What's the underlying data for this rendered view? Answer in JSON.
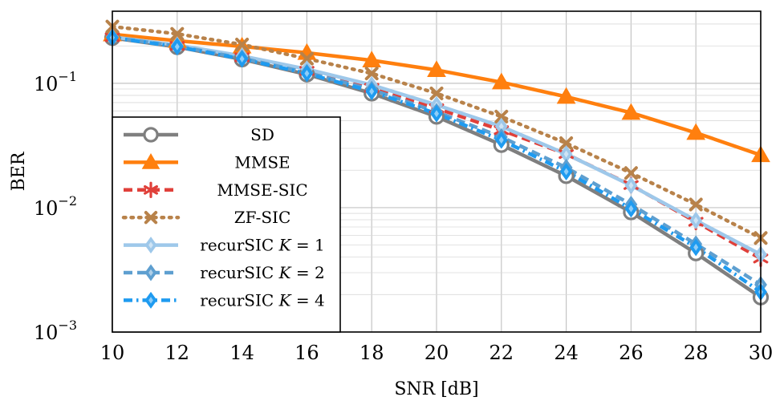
{
  "chart_data": {
    "type": "line",
    "xlabel": "SNR [dB]",
    "ylabel": "BER",
    "x": [
      10,
      12,
      14,
      16,
      18,
      20,
      22,
      24,
      26,
      28,
      30
    ],
    "x_tick_labels": [
      "10",
      "12",
      "14",
      "16",
      "18",
      "20",
      "22",
      "24",
      "26",
      "28",
      "30"
    ],
    "xlim": [
      10,
      30
    ],
    "ylim": [
      0.001,
      0.38
    ],
    "y_scale": "log",
    "y_ticks": [
      {
        "value": 0.1,
        "base": "10",
        "exp": "−1"
      },
      {
        "value": 0.01,
        "base": "10",
        "exp": "−2"
      },
      {
        "value": 0.001,
        "base": "10",
        "exp": "−3"
      }
    ],
    "grid": true,
    "legend_position": "lower-left",
    "series": [
      {
        "name": "SD",
        "label_parts": [
          {
            "t": "SD",
            "i": false
          }
        ],
        "color": "#7f7f7f",
        "dash": "solid",
        "marker": "circle",
        "values": [
          0.232,
          0.196,
          0.156,
          0.118,
          0.083,
          0.054,
          0.032,
          0.018,
          0.0092,
          0.0043,
          0.0019
        ]
      },
      {
        "name": "MMSE",
        "label_parts": [
          {
            "t": "MMSE",
            "i": false
          }
        ],
        "color": "#ff7f0e",
        "dash": "solid",
        "marker": "triangle",
        "values": [
          0.248,
          0.22,
          0.198,
          0.176,
          0.153,
          0.128,
          0.102,
          0.078,
          0.058,
          0.04,
          0.0265
        ]
      },
      {
        "name": "MMSE-SIC",
        "label_parts": [
          {
            "t": "MMSE-SIC",
            "i": false
          }
        ],
        "color": "#e0403a",
        "dash": "dashed",
        "marker": "star",
        "values": [
          0.235,
          0.2,
          0.162,
          0.126,
          0.092,
          0.063,
          0.042,
          0.027,
          0.0152,
          0.0077,
          0.0039
        ]
      },
      {
        "name": "ZF-SIC",
        "label_parts": [
          {
            "t": "ZF-SIC",
            "i": false
          }
        ],
        "color": "#b8824a",
        "dash": "dotted",
        "marker": "cross",
        "values": [
          0.286,
          0.25,
          0.205,
          0.158,
          0.12,
          0.083,
          0.054,
          0.033,
          0.019,
          0.0106,
          0.0057
        ]
      },
      {
        "name": "recurSIC K = 1",
        "label_parts": [
          {
            "t": "recurSIC ",
            "i": false
          },
          {
            "t": "K",
            "i": true
          },
          {
            "t": " = 1",
            "i": false
          }
        ],
        "color": "#9ec8ea",
        "dash": "solid",
        "marker": "diamond",
        "values": [
          0.236,
          0.203,
          0.166,
          0.13,
          0.097,
          0.067,
          0.045,
          0.027,
          0.0151,
          0.0079,
          0.0042
        ]
      },
      {
        "name": "recurSIC K = 2",
        "label_parts": [
          {
            "t": "recurSIC ",
            "i": false
          },
          {
            "t": "K",
            "i": true
          },
          {
            "t": " = 2",
            "i": false
          }
        ],
        "color": "#5e9fd0",
        "dash": "dashed",
        "marker": "diamond",
        "values": [
          0.234,
          0.199,
          0.159,
          0.122,
          0.089,
          0.059,
          0.037,
          0.021,
          0.0106,
          0.0051,
          0.0024
        ]
      },
      {
        "name": "recurSIC K = 4",
        "label_parts": [
          {
            "t": "recurSIC ",
            "i": false
          },
          {
            "t": "K",
            "i": true
          },
          {
            "t": " = 4",
            "i": false
          }
        ],
        "color": "#1f9bf0",
        "dash": "dashdot",
        "marker": "diamond",
        "values": [
          0.233,
          0.197,
          0.157,
          0.12,
          0.086,
          0.057,
          0.035,
          0.0195,
          0.0098,
          0.0048,
          0.0021
        ]
      }
    ]
  }
}
